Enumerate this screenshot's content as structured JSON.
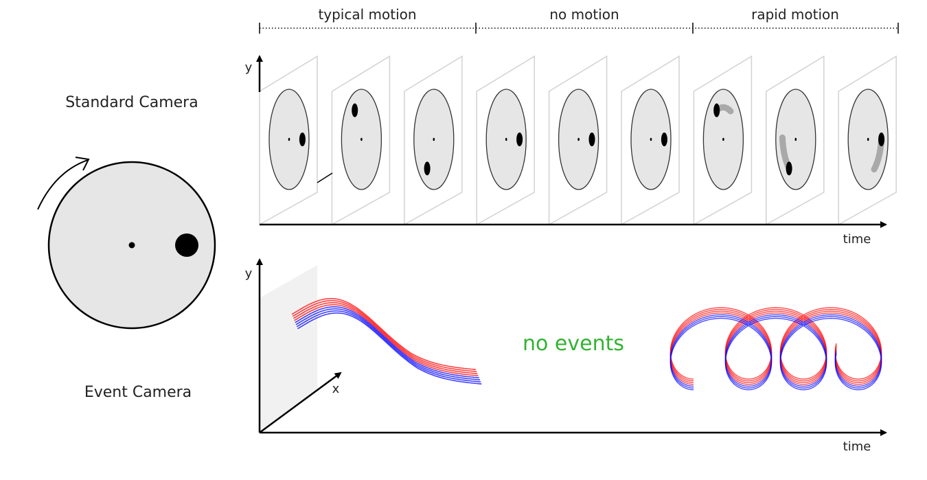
{
  "segments": [
    "typical motion",
    "no motion",
    "rapid motion"
  ],
  "rows": {
    "standard_label": "Standard Camera",
    "event_label": "Event Camera"
  },
  "axes": {
    "y_top": "y",
    "time_top": "time",
    "y_bottom": "y",
    "x_bottom": "x",
    "time_bottom": "time"
  },
  "no_events_label": "no events",
  "colors": {
    "disk_fill": "#e6e6e6",
    "blur_gray": "#a9a9a9",
    "event_positive": "#ff0000",
    "event_negative": "#0000ff",
    "no_events_text": "#33b233"
  },
  "frames": [
    {
      "dot_angle_deg": 0,
      "blur": false
    },
    {
      "dot_angle_deg": 120,
      "blur": false
    },
    {
      "dot_angle_deg": 240,
      "blur": false
    },
    {
      "dot_angle_deg": 0,
      "blur": false
    },
    {
      "dot_angle_deg": 0,
      "blur": false
    },
    {
      "dot_angle_deg": 0,
      "blur": false
    },
    {
      "dot_angle_deg": 120,
      "blur": true
    },
    {
      "dot_angle_deg": 240,
      "blur": true
    },
    {
      "dot_angle_deg": 0,
      "blur": true
    }
  ]
}
